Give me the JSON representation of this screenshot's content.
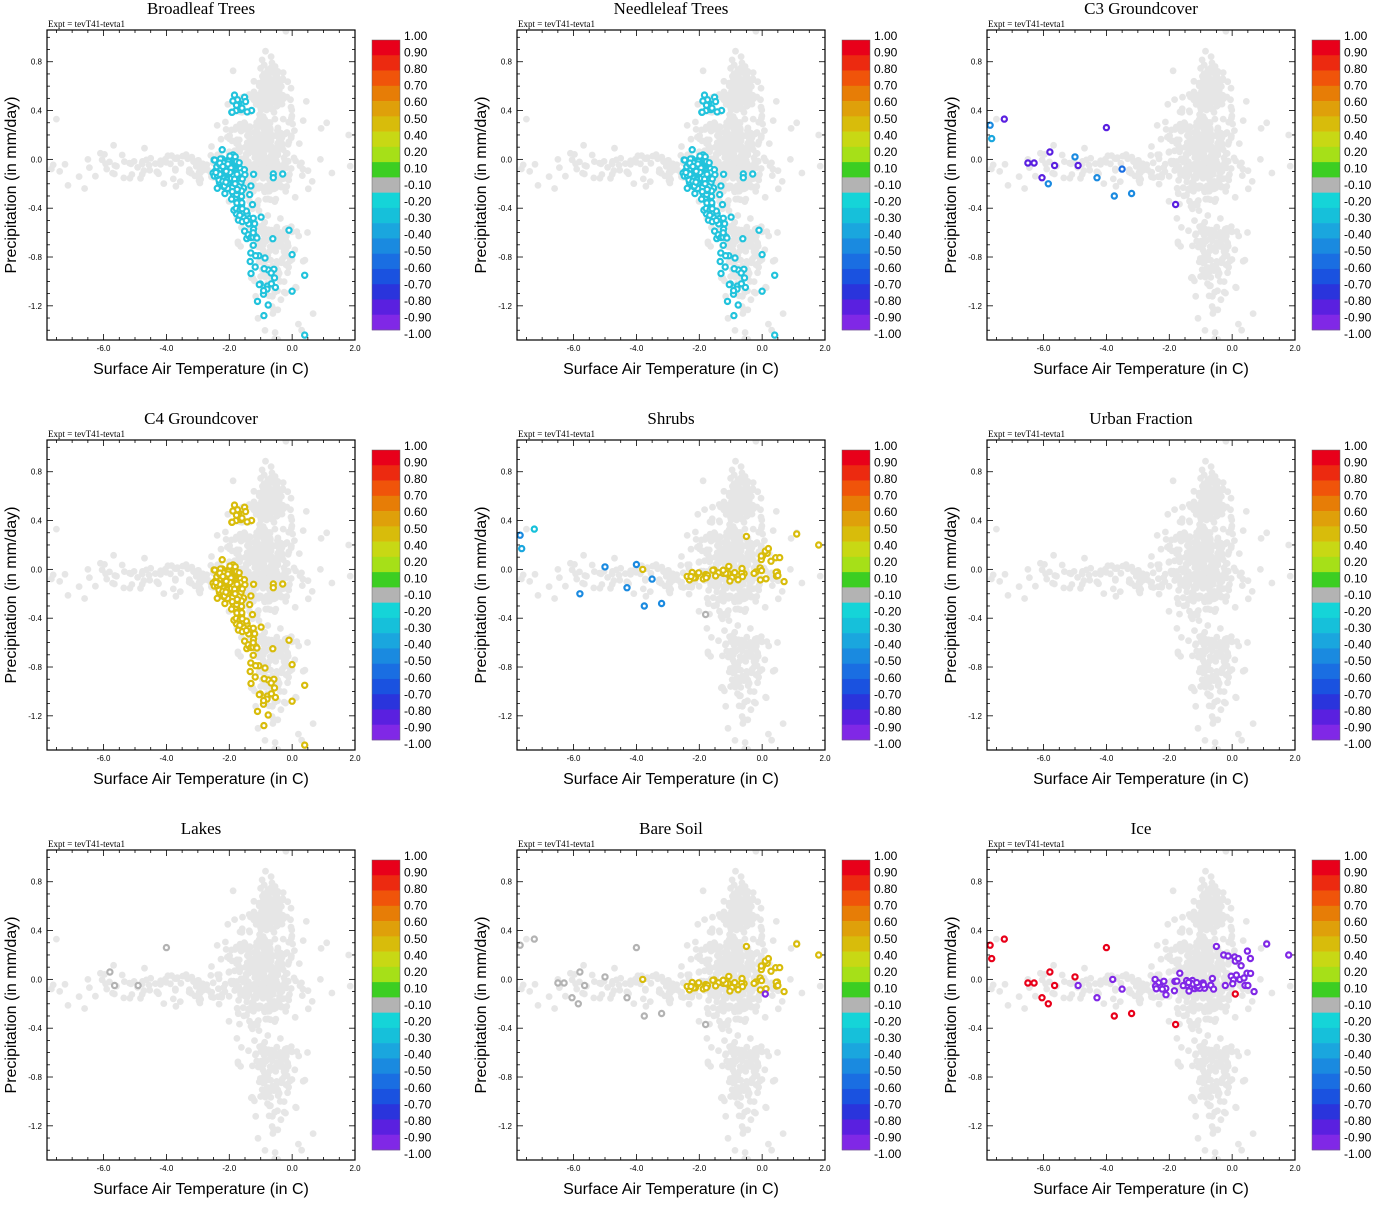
{
  "figure": {
    "experiment_label": "Expt = tevT41-tevta1",
    "xlabel": "Surface Air Temperature (in C)",
    "ylabel": "Precipitation (in mm/day)",
    "xlim": [
      -7.8,
      2.0
    ],
    "ylim": [
      -1.48,
      1.06
    ],
    "xticks": [
      "-6.0",
      "-4.0",
      "-2.0",
      "0.0",
      "2.0"
    ],
    "yticks": [
      "0.8",
      "0.4",
      "0.0",
      "-0.4",
      "-0.8",
      "-1.2"
    ],
    "colorbar_labels": [
      "1.00",
      "0.90",
      "0.80",
      "0.70",
      "0.60",
      "0.50",
      "0.40",
      "0.20",
      "0.10",
      "-0.10",
      "-0.20",
      "-0.30",
      "-0.40",
      "-0.50",
      "-0.60",
      "-0.70",
      "-0.80",
      "-0.90",
      "-1.00"
    ],
    "colorbar_colors": [
      "#e8001a",
      "#ec2a10",
      "#f0540a",
      "#e77d06",
      "#dfa00a",
      "#d8bc0b",
      "#c8d814",
      "#a6e018",
      "#3cce22",
      "#b3b3b3",
      "#15d4d8",
      "#16c0da",
      "#1aa6de",
      "#1a8ae0",
      "#1a6ee2",
      "#1a52e0",
      "#2a34dc",
      "#5a20e0",
      "#8028e6"
    ],
    "background_color": "#e6e6e6"
  },
  "chart_data": [
    {
      "type": "scatter",
      "title": "Broadleaf Trees",
      "cluster": "trees",
      "color": "#22c3dc",
      "points": [],
      "background_points": "gray cloud of all grid cells"
    },
    {
      "type": "scatter",
      "title": "Needleleaf Trees",
      "cluster": "trees",
      "color": "#22c3dc",
      "points": []
    },
    {
      "type": "scatter",
      "title": "C3 Groundcover",
      "cluster": "none",
      "points": [
        {
          "x": -7.7,
          "y": 0.28,
          "c": "#1a8ae0"
        },
        {
          "x": -7.65,
          "y": 0.17,
          "c": "#1aa6de"
        },
        {
          "x": -7.25,
          "y": 0.33,
          "c": "#5a20e0"
        },
        {
          "x": -6.5,
          "y": -0.03,
          "c": "#5a20e0"
        },
        {
          "x": -6.3,
          "y": -0.03,
          "c": "#5a20e0"
        },
        {
          "x": -6.05,
          "y": -0.15,
          "c": "#5a20e0"
        },
        {
          "x": -5.8,
          "y": 0.06,
          "c": "#5a20e0"
        },
        {
          "x": -5.65,
          "y": -0.05,
          "c": "#5a20e0"
        },
        {
          "x": -5.85,
          "y": -0.2,
          "c": "#1a8ae0"
        },
        {
          "x": -5.0,
          "y": 0.02,
          "c": "#1a8ae0"
        },
        {
          "x": -4.9,
          "y": -0.05,
          "c": "#5a20e0"
        },
        {
          "x": -4.3,
          "y": -0.15,
          "c": "#1a8ae0"
        },
        {
          "x": -4.0,
          "y": 0.26,
          "c": "#5a20e0"
        },
        {
          "x": -3.75,
          "y": -0.3,
          "c": "#1a8ae0"
        },
        {
          "x": -3.5,
          "y": -0.08,
          "c": "#1a6ee2"
        },
        {
          "x": -3.2,
          "y": -0.28,
          "c": "#1a8ae0"
        },
        {
          "x": -1.8,
          "y": -0.37,
          "c": "#5a20e0"
        }
      ]
    },
    {
      "type": "scatter",
      "title": "C4 Groundcover",
      "cluster": "trees",
      "color": "#d8bc0b",
      "points": []
    },
    {
      "type": "scatter",
      "title": "Shrubs",
      "cluster": "shrubline",
      "color": "#d8bc0b",
      "points": [
        {
          "x": -7.7,
          "y": 0.28,
          "c": "#1a8ae0"
        },
        {
          "x": -7.65,
          "y": 0.17,
          "c": "#1aa6de"
        },
        {
          "x": -7.25,
          "y": 0.33,
          "c": "#16c0da"
        },
        {
          "x": -5.8,
          "y": -0.2,
          "c": "#1a8ae0"
        },
        {
          "x": -5.0,
          "y": 0.02,
          "c": "#1a8ae0"
        },
        {
          "x": -4.3,
          "y": -0.15,
          "c": "#1a8ae0"
        },
        {
          "x": -4.0,
          "y": 0.04,
          "c": "#1a8ae0"
        },
        {
          "x": -3.75,
          "y": -0.3,
          "c": "#1a8ae0"
        },
        {
          "x": -3.5,
          "y": -0.08,
          "c": "#1a8ae0"
        },
        {
          "x": -3.2,
          "y": -0.28,
          "c": "#1a8ae0"
        },
        {
          "x": -1.8,
          "y": -0.37,
          "c": "#b3b3b3"
        }
      ]
    },
    {
      "type": "scatter",
      "title": "Urban Fraction",
      "cluster": "none",
      "points": []
    },
    {
      "type": "scatter",
      "title": "Lakes",
      "cluster": "none",
      "points": [
        {
          "x": -5.8,
          "y": 0.06,
          "c": "#b3b3b3"
        },
        {
          "x": -5.65,
          "y": -0.05,
          "c": "#b3b3b3"
        },
        {
          "x": -4.9,
          "y": -0.05,
          "c": "#b3b3b3"
        },
        {
          "x": -4.0,
          "y": 0.26,
          "c": "#b3b3b3"
        }
      ]
    },
    {
      "type": "scatter",
      "title": "Bare Soil",
      "cluster": "shrubline",
      "color": "#d8bc0b",
      "points": [
        {
          "x": -7.7,
          "y": 0.28,
          "c": "#b3b3b3"
        },
        {
          "x": -7.25,
          "y": 0.33,
          "c": "#b3b3b3"
        },
        {
          "x": -6.5,
          "y": -0.03,
          "c": "#b3b3b3"
        },
        {
          "x": -6.3,
          "y": -0.03,
          "c": "#b3b3b3"
        },
        {
          "x": -5.8,
          "y": 0.06,
          "c": "#b3b3b3"
        },
        {
          "x": -5.65,
          "y": -0.05,
          "c": "#b3b3b3"
        },
        {
          "x": -5.85,
          "y": -0.2,
          "c": "#b3b3b3"
        },
        {
          "x": -6.05,
          "y": -0.15,
          "c": "#b3b3b3"
        },
        {
          "x": -5.0,
          "y": 0.02,
          "c": "#b3b3b3"
        },
        {
          "x": -4.3,
          "y": -0.15,
          "c": "#b3b3b3"
        },
        {
          "x": -4.0,
          "y": 0.26,
          "c": "#b3b3b3"
        },
        {
          "x": -3.75,
          "y": -0.3,
          "c": "#b3b3b3"
        },
        {
          "x": -3.2,
          "y": -0.28,
          "c": "#b3b3b3"
        },
        {
          "x": -1.8,
          "y": -0.37,
          "c": "#b3b3b3"
        },
        {
          "x": 0.1,
          "y": -0.12,
          "c": "#8028e6"
        }
      ]
    },
    {
      "type": "scatter",
      "title": "Ice",
      "cluster": "iceline",
      "color": "#8028e6",
      "points": [
        {
          "x": -7.7,
          "y": 0.28,
          "c": "#e8001a"
        },
        {
          "x": -7.65,
          "y": 0.17,
          "c": "#e8001a"
        },
        {
          "x": -7.25,
          "y": 0.33,
          "c": "#e8001a"
        },
        {
          "x": -6.5,
          "y": -0.03,
          "c": "#e8001a"
        },
        {
          "x": -6.3,
          "y": -0.03,
          "c": "#e8001a"
        },
        {
          "x": -6.05,
          "y": -0.15,
          "c": "#e8001a"
        },
        {
          "x": -5.8,
          "y": 0.06,
          "c": "#e8001a"
        },
        {
          "x": -5.65,
          "y": -0.05,
          "c": "#e8001a"
        },
        {
          "x": -5.85,
          "y": -0.2,
          "c": "#e8001a"
        },
        {
          "x": -5.0,
          "y": 0.02,
          "c": "#e8001a"
        },
        {
          "x": -4.9,
          "y": -0.05,
          "c": "#8028e6"
        },
        {
          "x": -4.3,
          "y": -0.15,
          "c": "#8028e6"
        },
        {
          "x": -4.0,
          "y": 0.26,
          "c": "#e8001a"
        },
        {
          "x": -3.75,
          "y": -0.3,
          "c": "#e8001a"
        },
        {
          "x": -3.5,
          "y": -0.08,
          "c": "#8028e6"
        },
        {
          "x": -3.2,
          "y": -0.28,
          "c": "#e8001a"
        },
        {
          "x": -1.8,
          "y": -0.37,
          "c": "#e8001a"
        },
        {
          "x": 0.1,
          "y": -0.12,
          "c": "#e8001a"
        }
      ]
    }
  ]
}
